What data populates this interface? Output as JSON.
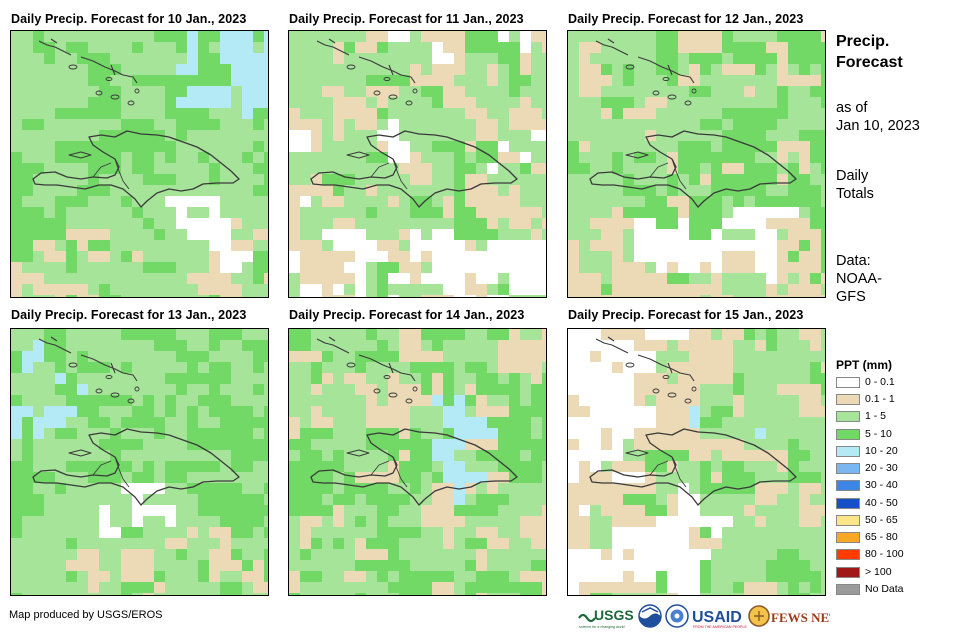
{
  "panels": [
    {
      "title": "Daily Precip. Forecast for 10 Jan., 2023",
      "map_name": "precip-map-jan-10"
    },
    {
      "title": "Daily Precip. Forecast for 11 Jan., 2023",
      "map_name": "precip-map-jan-11"
    },
    {
      "title": "Daily Precip. Forecast for 12 Jan., 2023",
      "map_name": "precip-map-jan-12"
    },
    {
      "title": "Daily Precip. Forecast for 13 Jan., 2023",
      "map_name": "precip-map-jan-13"
    },
    {
      "title": "Daily Precip. Forecast for 14 Jan., 2023",
      "map_name": "precip-map-jan-14"
    },
    {
      "title": "Daily Precip. Forecast for 15 Jan., 2023",
      "map_name": "precip-map-jan-15"
    }
  ],
  "sidebar": {
    "title_line1": "Precip.",
    "title_line2": "Forecast",
    "asof_line1": "as of",
    "asof_line2": "Jan 10, 2023",
    "totals_line1": "Daily",
    "totals_line2": "Totals",
    "data_line1": "Data:",
    "data_line2": "NOAA-",
    "data_line3": "GFS"
  },
  "legend": {
    "title": "PPT (mm)",
    "items": [
      {
        "label": "0 - 0.1",
        "color": "#ffffff"
      },
      {
        "label": "0.1 - 1",
        "color": "#ecd9b6"
      },
      {
        "label": "1 - 5",
        "color": "#a6e49a"
      },
      {
        "label": "5 - 10",
        "color": "#72d866"
      },
      {
        "label": "10 - 20",
        "color": "#b4eaf5"
      },
      {
        "label": "20 - 30",
        "color": "#7ab6f0"
      },
      {
        "label": "30 - 40",
        "color": "#3e86e6"
      },
      {
        "label": "40 - 50",
        "color": "#1650c8"
      },
      {
        "label": "50 - 65",
        "color": "#fde68a"
      },
      {
        "label": "65 - 80",
        "color": "#f9a825"
      },
      {
        "label": "80 - 100",
        "color": "#ff3b00"
      },
      {
        "label": "> 100",
        "color": "#a01818"
      },
      {
        "label": "No Data",
        "color": "#9a9a9a"
      }
    ]
  },
  "credit": "Map produced by USGS/EROS",
  "logos": {
    "usgs": "USGS",
    "usgs_tagline": "science for a changing world",
    "noaa": "NOAA",
    "usaid": "USAID",
    "usaid_tagline": "FROM THE AMERICAN PEOPLE",
    "fews": "FEWS NET"
  }
}
